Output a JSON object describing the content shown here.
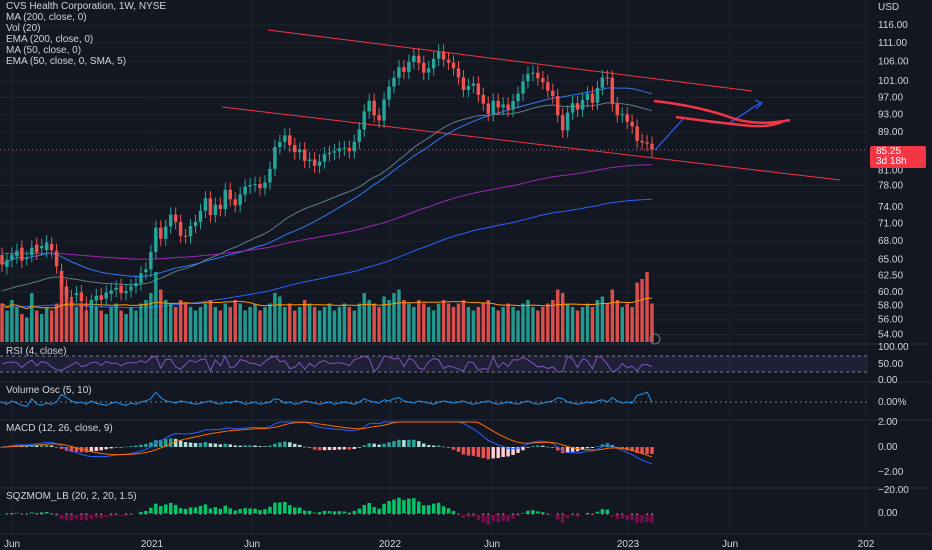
{
  "header": {
    "legend_lines": [
      "CVS Health Corporation, 1W, NYSE",
      "MA (200, close, 0)",
      "Vol (20)",
      "EMA (200, close, 0)",
      "MA (50, close, 0)",
      "EMA (50, close, 0, SMA, 5)"
    ]
  },
  "colors": {
    "background": "#131722",
    "up": "#26a69a",
    "down": "#ef5350",
    "channel": "#f23645",
    "ma200": "#2962ff",
    "ema200": "#9c27b0",
    "ma50": "#3179f5",
    "vol_ma": "#ff9800"
  },
  "chart_data": [
    {
      "type": "candlestick",
      "title": "CVS Health Corporation, 1W, NYSE",
      "currency": "USD",
      "y_scale": "log",
      "ylim": [
        53,
        118
      ],
      "y_ticks": [
        "116.00",
        "111.00",
        "106.00",
        "101.00",
        "97.00",
        "93.00",
        "89.00",
        "85.00",
        "81.00",
        "78.00",
        "74.00",
        "71.00",
        "68.00",
        "65.00",
        "62.50",
        "60.00",
        "58.00",
        "56.00",
        "54.00"
      ],
      "x_ticks": [
        "Jun",
        "2021",
        "Jun",
        "2022",
        "Jun",
        "2023",
        "Jun",
        "202"
      ],
      "x_range_index": [
        0,
        140
      ],
      "last_price": "85.25",
      "countdown": "3d 18h",
      "close": [
        64.2,
        64.9,
        65.8,
        66.4,
        64.8,
        65.2,
        66.9,
        66.1,
        67.2,
        67.8,
        66.5,
        63.9,
        61.0,
        59.4,
        58.9,
        59.8,
        58.6,
        57.9,
        58.6,
        59.4,
        58.8,
        59.9,
        60.2,
        60.6,
        59.8,
        60.1,
        60.8,
        61.3,
        62.8,
        63.4,
        66.2,
        70.3,
        68.4,
        70.5,
        72.6,
        71.3,
        68.9,
        68.8,
        70.6,
        71.3,
        73.3,
        75.6,
        72.5,
        74.4,
        73.6,
        77.2,
        75.4,
        74.3,
        76.3,
        77.8,
        78.1,
        78.3,
        77.5,
        78.6,
        81.3,
        85.8,
        86.9,
        88.3,
        86.2,
        84.7,
        85.3,
        82.9,
        83.2,
        81.9,
        82.8,
        84.3,
        84.6,
        84.9,
        85.5,
        85.6,
        84.9,
        86.9,
        89.6,
        93.7,
        96.2,
        92.8,
        91.6,
        96.5,
        99.6,
        101.8,
        104.5,
        103.3,
        105.9,
        107.5,
        105.6,
        103.1,
        104.2,
        106.7,
        108.6,
        106.5,
        105.7,
        104.2,
        101.9,
        98.8,
        99.8,
        100.4,
        97.6,
        95.5,
        93.1,
        96.2,
        94.6,
        95.3,
        94.1,
        96.1,
        97.9,
        100.9,
        102.8,
        103.1,
        101.7,
        100.7,
        98.6,
        97.3,
        92.8,
        89.4,
        93.4,
        95.6,
        94.1,
        96.4,
        97.9,
        95.7,
        99.3,
        101.9,
        101.8,
        95.4,
        92.8,
        93.0,
        91.3,
        90.3,
        87.1,
        86.8,
        86.5,
        85.25
      ],
      "open": [
        65.7,
        63.8,
        64.9,
        65.5,
        66.9,
        65.2,
        65.7,
        67.4,
        66.8,
        66.5,
        67.5,
        66.4,
        63.2,
        60.8,
        59.2,
        59.5,
        59.9,
        58.3,
        58.1,
        58.7,
        59.5,
        59.0,
        59.7,
        60.3,
        60.9,
        59.8,
        60.2,
        60.8,
        61.3,
        63.0,
        63.4,
        66.2,
        70.3,
        68.4,
        70.5,
        72.6,
        71.3,
        68.9,
        68.8,
        70.6,
        71.3,
        73.3,
        75.6,
        72.5,
        74.4,
        73.6,
        77.2,
        75.4,
        74.3,
        76.3,
        77.8,
        78.1,
        78.3,
        77.5,
        78.6,
        81.3,
        85.8,
        86.9,
        88.3,
        86.2,
        84.7,
        85.3,
        82.9,
        83.2,
        81.9,
        82.8,
        84.3,
        84.6,
        84.9,
        85.5,
        85.6,
        84.9,
        86.9,
        89.6,
        93.7,
        96.2,
        92.8,
        91.6,
        96.5,
        99.6,
        101.8,
        104.5,
        103.3,
        105.9,
        107.5,
        105.6,
        103.1,
        104.2,
        106.7,
        108.6,
        106.5,
        105.7,
        104.2,
        101.9,
        98.8,
        99.8,
        100.4,
        97.6,
        95.5,
        93.1,
        96.2,
        94.6,
        95.3,
        94.1,
        96.1,
        97.9,
        100.9,
        102.8,
        103.1,
        101.7,
        100.7,
        98.6,
        97.3,
        92.8,
        89.4,
        93.4,
        95.6,
        94.1,
        96.4,
        97.9,
        95.7,
        99.3,
        101.9,
        101.8,
        95.4,
        92.8,
        93.0,
        91.3,
        90.3,
        87.1,
        86.8,
        86.5
      ],
      "volume": [
        0.55,
        0.45,
        0.6,
        0.5,
        0.4,
        0.35,
        0.7,
        0.45,
        0.4,
        0.5,
        0.45,
        0.55,
        0.9,
        0.75,
        0.6,
        0.5,
        0.55,
        0.45,
        0.6,
        0.5,
        0.45,
        0.4,
        0.5,
        0.55,
        0.45,
        0.4,
        0.5,
        0.45,
        0.55,
        0.6,
        0.7,
        1.0,
        0.75,
        0.6,
        0.55,
        0.5,
        0.6,
        0.55,
        0.5,
        0.45,
        0.5,
        0.55,
        0.6,
        0.5,
        0.45,
        0.55,
        0.5,
        0.6,
        0.55,
        0.45,
        0.5,
        0.55,
        0.45,
        0.5,
        0.55,
        0.7,
        0.65,
        0.5,
        0.55,
        0.45,
        0.5,
        0.6,
        0.55,
        0.5,
        0.45,
        0.5,
        0.55,
        0.45,
        0.5,
        0.55,
        0.5,
        0.45,
        0.55,
        0.7,
        0.6,
        0.55,
        0.5,
        0.65,
        0.6,
        0.7,
        0.75,
        0.6,
        0.55,
        0.5,
        0.6,
        0.55,
        0.5,
        0.45,
        0.55,
        0.6,
        0.55,
        0.5,
        0.55,
        0.6,
        0.5,
        0.45,
        0.5,
        0.55,
        0.6,
        0.5,
        0.45,
        0.5,
        0.55,
        0.5,
        0.45,
        0.55,
        0.6,
        0.5,
        0.45,
        0.5,
        0.55,
        0.6,
        0.75,
        0.7,
        0.55,
        0.5,
        0.45,
        0.5,
        0.55,
        0.5,
        0.6,
        0.65,
        0.55,
        0.75,
        0.6,
        0.5,
        0.55,
        0.5,
        0.85,
        0.9,
        1.0,
        0.55
      ]
    },
    {
      "type": "line",
      "title": "RSI (4, close)",
      "y_ticks": [
        "100.00",
        "50.00",
        "0.00"
      ]
    },
    {
      "type": "line",
      "title": "Volume Osc (5, 10)",
      "y_ticks": [
        "0.00%"
      ]
    },
    {
      "type": "bar",
      "title": "MACD (12, 26, close, 9)",
      "y_ticks": [
        "2.00",
        "0.00",
        "−2.00"
      ]
    },
    {
      "type": "bar",
      "title": "SQZMOM_LB (20, 2, 20, 1.5)",
      "y_ticks": [
        "0.00",
        "−20.00"
      ]
    }
  ],
  "panes": {
    "rsi_label": "RSI (4, close)",
    "volosc_label": "Volume Osc (5, 10)",
    "macd_label": "MACD (12, 26, close, 9)",
    "sqz_label": "SQZMOM_LB (20, 2, 20, 1.5)"
  },
  "axis": {
    "currency": "USD"
  },
  "price_tag": {
    "price": "85.25",
    "countdown": "3d 18h"
  }
}
